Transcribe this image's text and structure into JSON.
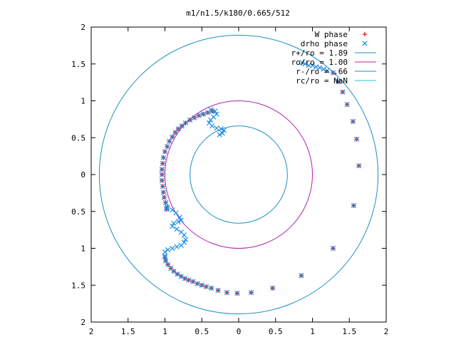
{
  "chart_data": {
    "type": "scatter",
    "title": "m1/n1.5/k180/0.665/512",
    "xlabel": "",
    "ylabel": "",
    "xlim": [
      -2,
      2
    ],
    "ylim": [
      -2,
      2
    ],
    "grid": false,
    "legend_position": "top-right",
    "x_ticks": [
      -2,
      -1.5,
      -1,
      -0.5,
      0,
      0.5,
      1,
      1.5,
      2
    ],
    "y_ticks": [
      -2,
      -1.5,
      -1,
      -0.5,
      0,
      0.5,
      1,
      1.5,
      2
    ],
    "x_tick_labels": [
      "2",
      "1.5",
      "1",
      "0.5",
      "0",
      "0.5",
      "1",
      "1.5",
      "2"
    ],
    "y_tick_labels": [
      "2",
      "1.5",
      "1",
      "0.5",
      "0",
      "0.5",
      "1",
      "1.5",
      "2"
    ],
    "circles": [
      {
        "name": "r+/ro = 1.89",
        "radius": 1.89,
        "color": "#1c8fbf"
      },
      {
        "name": "ro/ro = 1.00",
        "radius": 1.0,
        "color": "#b21fb3"
      },
      {
        "name": "r-/ro = .66",
        "radius": 0.66,
        "color": "#1c8fbf"
      },
      {
        "name": "rc/ro = NaN",
        "radius": null,
        "color": "#22c9c9"
      }
    ],
    "series": [
      {
        "name": "W phase",
        "marker": "+",
        "color": "#e01414",
        "points": [
          [
            1.28,
            1.38
          ],
          [
            1.35,
            1.26
          ],
          [
            1.41,
            1.12
          ],
          [
            1.47,
            0.95
          ],
          [
            1.55,
            0.72
          ],
          [
            1.6,
            0.48
          ],
          [
            1.63,
            0.12
          ],
          [
            1.56,
            -0.42
          ],
          [
            1.28,
            -1.0
          ],
          [
            0.85,
            -1.37
          ],
          [
            0.46,
            -1.54
          ],
          [
            0.17,
            -1.6
          ],
          [
            -0.02,
            -1.61
          ],
          [
            -0.16,
            -1.6
          ],
          [
            -0.28,
            -1.57
          ],
          [
            -0.37,
            -1.54
          ],
          [
            -0.44,
            -1.52
          ],
          [
            -0.5,
            -1.5
          ],
          [
            -0.56,
            -1.48
          ],
          [
            -0.62,
            -1.45
          ],
          [
            -0.68,
            -1.43
          ],
          [
            -0.73,
            -1.41
          ],
          [
            -0.78,
            -1.38
          ],
          [
            -0.83,
            -1.35
          ],
          [
            -0.88,
            -1.31
          ],
          [
            -0.92,
            -1.27
          ],
          [
            -0.96,
            -1.22
          ],
          [
            -0.99,
            -1.17
          ],
          [
            -1.0,
            -1.12
          ],
          [
            -0.98,
            -0.47
          ],
          [
            -0.97,
            -0.44
          ],
          [
            -0.99,
            -0.38
          ],
          [
            -1.01,
            -0.31
          ],
          [
            -1.02,
            -0.24
          ],
          [
            -1.03,
            -0.16
          ],
          [
            -1.04,
            -0.08
          ],
          [
            -1.04,
            0.0
          ],
          [
            -1.04,
            0.07
          ],
          [
            -1.03,
            0.15
          ],
          [
            -1.02,
            0.23
          ],
          [
            -1.0,
            0.31
          ],
          [
            -0.97,
            0.38
          ],
          [
            -0.94,
            0.45
          ],
          [
            -0.9,
            0.51
          ],
          [
            -0.86,
            0.57
          ],
          [
            -0.82,
            0.62
          ],
          [
            -0.77,
            0.66
          ],
          [
            -0.72,
            0.7
          ],
          [
            -0.66,
            0.74
          ],
          [
            -0.6,
            0.77
          ],
          [
            -0.54,
            0.8
          ],
          [
            -0.48,
            0.82
          ],
          [
            -0.42,
            0.84
          ],
          [
            -0.36,
            0.86
          ]
        ]
      },
      {
        "name": "drho phase",
        "marker": "x",
        "color": "#1a8ce8",
        "points": [
          [
            1.28,
            1.38
          ],
          [
            1.35,
            1.26
          ],
          [
            1.41,
            1.12
          ],
          [
            1.47,
            0.95
          ],
          [
            1.55,
            0.72
          ],
          [
            1.6,
            0.48
          ],
          [
            1.63,
            0.12
          ],
          [
            1.56,
            -0.42
          ],
          [
            1.28,
            -1.0
          ],
          [
            0.85,
            -1.37
          ],
          [
            0.46,
            -1.54
          ],
          [
            0.17,
            -1.6
          ],
          [
            -0.02,
            -1.61
          ],
          [
            -0.16,
            -1.6
          ],
          [
            -0.28,
            -1.57
          ],
          [
            -0.37,
            -1.54
          ],
          [
            -0.44,
            -1.52
          ],
          [
            -0.5,
            -1.5
          ],
          [
            -0.56,
            -1.48
          ],
          [
            -0.62,
            -1.45
          ],
          [
            -0.68,
            -1.43
          ],
          [
            -0.73,
            -1.41
          ],
          [
            -0.78,
            -1.38
          ],
          [
            -0.83,
            -1.35
          ],
          [
            -0.88,
            -1.31
          ],
          [
            -0.92,
            -1.27
          ],
          [
            -0.96,
            -1.22
          ],
          [
            -0.99,
            -1.17
          ],
          [
            -1.0,
            -1.12
          ],
          [
            -0.98,
            -0.47
          ],
          [
            -0.97,
            -0.44
          ],
          [
            -0.99,
            -0.38
          ],
          [
            -1.01,
            -0.31
          ],
          [
            -1.02,
            -0.24
          ],
          [
            -1.03,
            -0.16
          ],
          [
            -1.04,
            -0.08
          ],
          [
            -1.04,
            0.0
          ],
          [
            -1.04,
            0.07
          ],
          [
            -1.03,
            0.15
          ],
          [
            -1.02,
            0.23
          ],
          [
            -1.0,
            0.31
          ],
          [
            -0.97,
            0.38
          ],
          [
            -0.94,
            0.45
          ],
          [
            -0.9,
            0.51
          ],
          [
            -0.86,
            0.57
          ],
          [
            -0.82,
            0.62
          ],
          [
            -0.77,
            0.66
          ],
          [
            -0.72,
            0.7
          ],
          [
            -0.66,
            0.74
          ],
          [
            -0.6,
            0.77
          ],
          [
            -0.54,
            0.8
          ],
          [
            -0.48,
            0.82
          ],
          [
            -0.42,
            0.84
          ],
          [
            -0.36,
            0.86
          ],
          [
            0.86,
            1.52
          ],
          [
            0.9,
            1.5
          ],
          [
            0.95,
            1.48
          ],
          [
            1.0,
            1.48
          ],
          [
            1.05,
            1.46
          ],
          [
            1.1,
            1.45
          ],
          [
            1.15,
            1.43
          ],
          [
            1.2,
            1.41
          ],
          [
            -0.97,
            -0.46
          ],
          [
            -0.9,
            -0.48
          ],
          [
            -0.85,
            -0.52
          ],
          [
            -0.8,
            -0.58
          ],
          [
            -0.78,
            -0.62
          ],
          [
            -0.82,
            -0.64
          ],
          [
            -0.88,
            -0.66
          ],
          [
            -0.9,
            -0.7
          ],
          [
            -0.84,
            -0.74
          ],
          [
            -0.78,
            -0.78
          ],
          [
            -0.74,
            -0.82
          ],
          [
            -0.72,
            -0.88
          ],
          [
            -0.74,
            -0.92
          ],
          [
            -0.78,
            -0.96
          ],
          [
            -0.84,
            -0.98
          ],
          [
            -0.9,
            -1.0
          ],
          [
            -0.96,
            -1.02
          ],
          [
            -1.0,
            -1.05
          ],
          [
            -1.0,
            -1.1
          ],
          [
            -0.38,
            0.88
          ],
          [
            -0.32,
            0.86
          ],
          [
            -0.3,
            0.82
          ],
          [
            -0.34,
            0.78
          ],
          [
            -0.38,
            0.74
          ],
          [
            -0.4,
            0.7
          ],
          [
            -0.36,
            0.66
          ],
          [
            -0.3,
            0.63
          ],
          [
            -0.24,
            0.62
          ],
          [
            -0.2,
            0.6
          ],
          [
            -0.22,
            0.56
          ],
          [
            -0.26,
            0.54
          ]
        ]
      }
    ]
  }
}
